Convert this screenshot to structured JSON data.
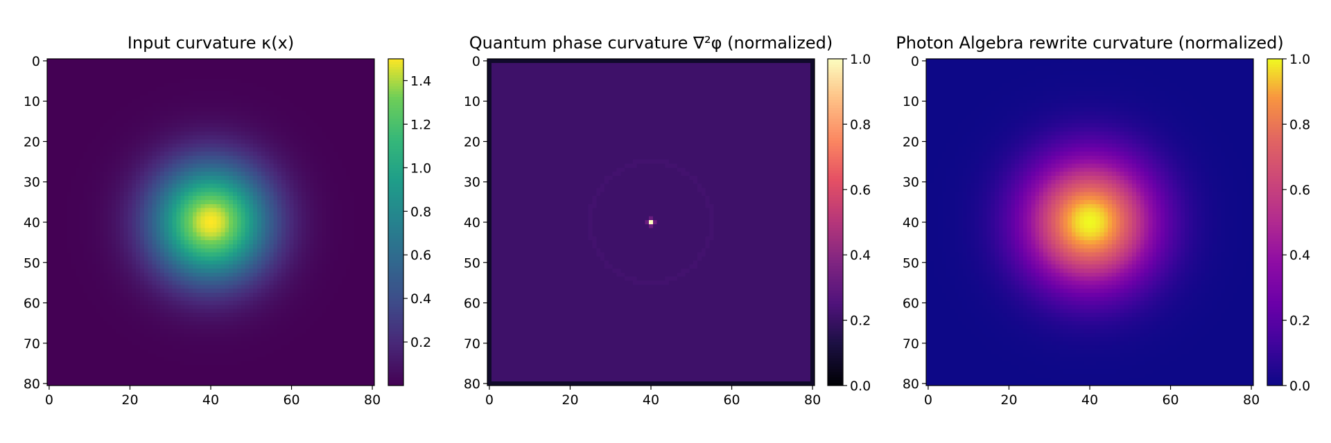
{
  "chart_data": [
    {
      "type": "heatmap",
      "title": "Input curvature κ(x)",
      "colormap": "viridis",
      "grid_size": 81,
      "field": {
        "kind": "gaussian",
        "center": [
          40,
          40
        ],
        "sigma": 10,
        "peak": 1.5
      },
      "x_ticks": [
        0,
        20,
        40,
        60,
        80
      ],
      "y_ticks": [
        0,
        10,
        20,
        30,
        40,
        50,
        60,
        70,
        80
      ],
      "xlim": [
        0,
        80
      ],
      "ylim": [
        80,
        0
      ],
      "colorbar": {
        "range": [
          0.0,
          1.5
        ],
        "ticks": [
          "0.2",
          "0.4",
          "0.6",
          "0.8",
          "1.0",
          "1.2",
          "1.4"
        ],
        "tick_values": [
          0.2,
          0.4,
          0.6,
          0.8,
          1.0,
          1.2,
          1.4
        ]
      },
      "grid": false
    },
    {
      "type": "heatmap",
      "title": "Quantum phase curvature ∇²φ (normalized)",
      "colormap": "magma",
      "grid_size": 81,
      "field": {
        "kind": "laplacian-spike",
        "center": [
          40,
          40
        ],
        "background": 0.21,
        "border": 0.08,
        "peak": 1.0
      },
      "x_ticks": [
        0,
        20,
        40,
        60,
        80
      ],
      "y_ticks": [
        0,
        10,
        20,
        30,
        40,
        50,
        60,
        70,
        80
      ],
      "xlim": [
        0,
        80
      ],
      "ylim": [
        80,
        0
      ],
      "colorbar": {
        "range": [
          0.0,
          1.0
        ],
        "ticks": [
          "0.0",
          "0.2",
          "0.4",
          "0.6",
          "0.8",
          "1.0"
        ],
        "tick_values": [
          0.0,
          0.2,
          0.4,
          0.6,
          0.8,
          1.0
        ]
      },
      "grid": false
    },
    {
      "type": "heatmap",
      "title": "Photon Algebra rewrite curvature (normalized)",
      "colormap": "plasma",
      "grid_size": 81,
      "field": {
        "kind": "gaussian",
        "center": [
          40,
          40
        ],
        "sigma": 11,
        "peak": 1.0
      },
      "x_ticks": [
        0,
        20,
        40,
        60,
        80
      ],
      "y_ticks": [
        0,
        10,
        20,
        30,
        40,
        50,
        60,
        70,
        80
      ],
      "xlim": [
        0,
        80
      ],
      "ylim": [
        80,
        0
      ],
      "colorbar": {
        "range": [
          0.0,
          1.0
        ],
        "ticks": [
          "0.0",
          "0.2",
          "0.4",
          "0.6",
          "0.8",
          "1.0"
        ],
        "tick_values": [
          0.0,
          0.2,
          0.4,
          0.6,
          0.8,
          1.0
        ]
      },
      "grid": false
    }
  ]
}
